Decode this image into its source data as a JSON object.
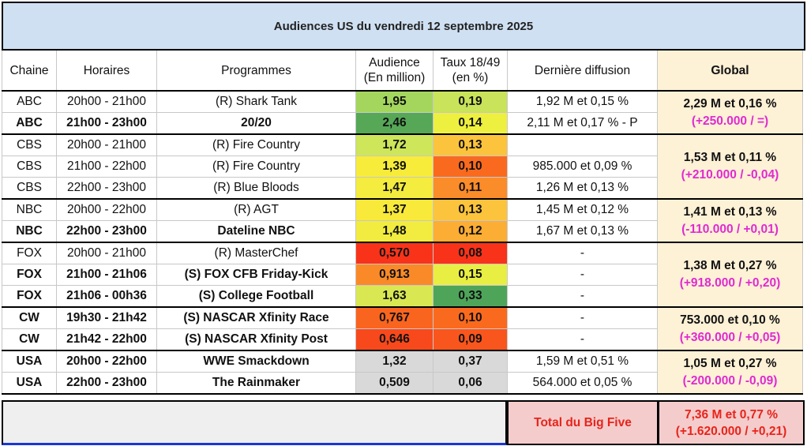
{
  "title": "Audiences US du vendredi 12 septembre 2025",
  "colors": {
    "title_bg": "#cfe0f3",
    "global_bg": "#fdf1d6",
    "total_bg": "#f4cccc",
    "global_text": "#e8241b",
    "global_sub_text": "#e02ad1"
  },
  "headers": {
    "channel": "Chaine",
    "time": "Horaires",
    "program": "Programmes",
    "audience_l1": "Audience",
    "audience_l2": "(En million)",
    "rating_l1": "Taux 18/49",
    "rating_l2": "(en %)",
    "last": "Dernière diffusion",
    "global": "Global"
  },
  "groups": [
    {
      "global_main": "2,29 M et 0,16 %",
      "global_sub": "(+250.000 / =)",
      "rows": [
        {
          "channel": "ABC",
          "time": "20h00 - 21h00",
          "program": "(R) Shark Tank",
          "audience": "1,95",
          "rating": "0,19",
          "last": "1,92 M et 0,15 %",
          "bold": false,
          "aud_color": "#a4d65e",
          "rat_color": "#c9e35a"
        },
        {
          "channel": "ABC",
          "time": "21h00 - 23h00",
          "program": "20/20",
          "audience": "2,46",
          "rating": "0,14",
          "last": "2,11 M et 0,17 % - P",
          "bold": true,
          "aud_color": "#56a857",
          "rat_color": "#eef03f"
        }
      ]
    },
    {
      "global_main": "1,53 M et 0,11 %",
      "global_sub": "(+210.000 / -0,04)",
      "rows": [
        {
          "channel": "CBS",
          "time": "20h00 - 21h00",
          "program": "(R) Fire Country",
          "audience": "1,72",
          "rating": "0,13",
          "last": "",
          "bold": false,
          "aud_color": "#cde65a",
          "rat_color": "#fcc43c"
        },
        {
          "channel": "CBS",
          "time": "21h00 - 22h00",
          "program": "(R) Fire Country",
          "audience": "1,39",
          "rating": "0,10",
          "last": "985.000 et 0,09 %",
          "bold": false,
          "aud_color": "#f7ec3a",
          "rat_color": "#fa6a1e"
        },
        {
          "channel": "CBS",
          "time": "22h00 - 23h00",
          "program": "(R) Blue Bloods",
          "audience": "1,47",
          "rating": "0,11",
          "last": "1,26 M et 0,13 %",
          "bold": false,
          "aud_color": "#f4ec3e",
          "rat_color": "#fb8c2a"
        }
      ]
    },
    {
      "global_main": "1,41 M et 0,13 %",
      "global_sub": "(-110.000 / +0,01)",
      "rows": [
        {
          "channel": "NBC",
          "time": "20h00 - 22h00",
          "program": "(R) AGT",
          "audience": "1,37",
          "rating": "0,13",
          "last": "1,45 M et 0,12 %",
          "bold": false,
          "aud_color": "#f8e93a",
          "rat_color": "#fcc43c"
        },
        {
          "channel": "NBC",
          "time": "22h00 - 23h00",
          "program": "Dateline NBC",
          "audience": "1,48",
          "rating": "0,12",
          "last": "1,67 M et 0,13 %",
          "bold": true,
          "aud_color": "#f1ec3f",
          "rat_color": "#fcad34"
        }
      ]
    },
    {
      "global_main": "1,38 M et 0,27 %",
      "global_sub": "(+918.000 / +0,20)",
      "rows": [
        {
          "channel": "FOX",
          "time": "20h00 - 21h00",
          "program": "(R) MasterChef",
          "audience": "0,570",
          "rating": "0,08",
          "last": "-",
          "bold": false,
          "aud_color": "#f8331a",
          "rat_color": "#f8331a"
        },
        {
          "channel": "FOX",
          "time": "21h00 - 21h06",
          "program": "(S) FOX CFB Friday-Kick",
          "audience": "0,913",
          "rating": "0,15",
          "last": "-",
          "bold": true,
          "aud_color": "#fa8a28",
          "rat_color": "#e9ef42"
        },
        {
          "channel": "FOX",
          "time": "21h06 - 00h36",
          "program": "(S) College Football",
          "audience": "1,63",
          "rating": "0,33",
          "last": "-",
          "bold": true,
          "aud_color": "#d9e852",
          "rat_color": "#4ea55a"
        }
      ]
    },
    {
      "global_main": "753.000 et 0,10 %",
      "global_sub": "(+360.000 / +0,05)",
      "rows": [
        {
          "channel": "CW",
          "time": "19h30 - 21h42",
          "program": "(S) NASCAR Xfinity Race",
          "audience": "0,767",
          "rating": "0,10",
          "last": "-",
          "bold": true,
          "aud_color": "#f9651f",
          "rat_color": "#fa6a1e"
        },
        {
          "channel": "CW",
          "time": "21h42 - 22h00",
          "program": "(S) NASCAR Xfinity Post",
          "audience": "0,646",
          "rating": "0,09",
          "last": "-",
          "bold": true,
          "aud_color": "#f8491c",
          "rat_color": "#f9561d"
        }
      ]
    },
    {
      "global_main": "1,05 M et 0,27 %",
      "global_sub": "(-200.000 / -0,09)",
      "rows": [
        {
          "channel": "USA",
          "time": "20h00 - 22h00",
          "program": "WWE Smackdown",
          "audience": "1,32",
          "rating": "0,37",
          "last": "1,59 M et 0,51 %",
          "bold": true,
          "aud_color": "#d9d9d9",
          "rat_color": "#d9d9d9"
        },
        {
          "channel": "USA",
          "time": "22h00 - 23h00",
          "program": "The Rainmaker",
          "audience": "0,509",
          "rating": "0,06",
          "last": "564.000 et 0,05 %",
          "bold": true,
          "aud_color": "#d9d9d9",
          "rat_color": "#d9d9d9"
        }
      ]
    }
  ],
  "footer": {
    "total_label": "Total du Big Five",
    "total_main": "7,36 M et 0,77 %",
    "total_sub": "(+1.620.000 / +0,21)"
  }
}
